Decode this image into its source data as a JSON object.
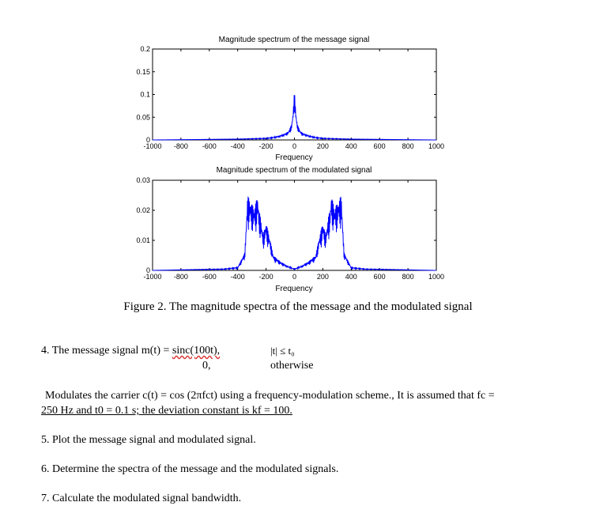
{
  "charts": {
    "message": {
      "title": "Magnitude spectrum of the message signal",
      "xlabel": "Frequency",
      "xticks": [
        "-1000",
        "-800",
        "-600",
        "-400",
        "-200",
        "0",
        "200",
        "400",
        "600",
        "800",
        "1000"
      ],
      "yticks": [
        "0",
        "0.05",
        "0.1",
        "0.15",
        "0.2"
      ]
    },
    "modulated": {
      "title": "Magnitude spectrum of the modulated signal",
      "xlabel": "Frequency",
      "xticks": [
        "-1000",
        "-800",
        "-600",
        "-400",
        "-200",
        "0",
        "200",
        "400",
        "600",
        "800",
        "1000"
      ],
      "yticks": [
        "0",
        "0.01",
        "0.02",
        "0.03"
      ]
    }
  },
  "chart_data": [
    {
      "type": "line",
      "title": "Magnitude spectrum of the message signal",
      "xlabel": "Frequency",
      "ylabel": "",
      "xlim": [
        -1000,
        1000
      ],
      "ylim": [
        0,
        0.2
      ],
      "grid": false,
      "series": [
        {
          "x": [
            -1000,
            -400,
            -200,
            -150,
            -100,
            -60,
            -40,
            -20,
            -10,
            0,
            10,
            20,
            40,
            60,
            100,
            150,
            200,
            400,
            1000
          ],
          "y": [
            0,
            0.002,
            0.004,
            0.006,
            0.01,
            0.015,
            0.02,
            0.035,
            0.06,
            0.11,
            0.06,
            0.035,
            0.02,
            0.015,
            0.01,
            0.006,
            0.004,
            0.002,
            0
          ]
        }
      ]
    },
    {
      "type": "line",
      "title": "Magnitude spectrum of the modulated signal",
      "xlabel": "Frequency",
      "ylabel": "",
      "xlim": [
        -1000,
        1000
      ],
      "ylim": [
        0,
        0.03
      ],
      "grid": false,
      "series": [
        {
          "x": [
            -1000,
            -500,
            -400,
            -350,
            -330,
            -300,
            -280,
            -260,
            -250,
            -240,
            -220,
            -200,
            -170,
            -150,
            -100,
            -50,
            0,
            50,
            100,
            150,
            170,
            200,
            220,
            240,
            250,
            260,
            280,
            300,
            330,
            350,
            400,
            500,
            1000
          ],
          "y": [
            0,
            0.0005,
            0.001,
            0.006,
            0.025,
            0.022,
            0.021,
            0.025,
            0.02,
            0.018,
            0.012,
            0.016,
            0.01,
            0.005,
            0.003,
            0.0015,
            0.0005,
            0.0015,
            0.003,
            0.005,
            0.01,
            0.016,
            0.012,
            0.018,
            0.02,
            0.025,
            0.021,
            0.022,
            0.025,
            0.006,
            0.001,
            0.0005,
            0
          ]
        }
      ]
    }
  ],
  "caption": "Figure 2. The magnitude spectra of the message and the modulated signal",
  "items": {
    "q4_prefix": "4.  The message signal m(t) = ",
    "q4_sinc": "sinc(100t),",
    "q4_cond1": "|t| ≤ t₀",
    "q4_zero": "0,",
    "q4_cond2": "otherwise",
    "q4_line1": "Modulates the carrier c(t) = cos (2πfct) using a frequency-modulation scheme., It is assumed that fc =",
    "q4_line2": "250 Hz and t0 = 0.1 s; the deviation constant is kf = 100.",
    "q5": "5.  Plot the message signal and modulated signal.",
    "q6": "6.  Determine the spectra of the message and the modulated signals.",
    "q7": "7.  Calculate the modulated signal bandwidth."
  },
  "colors": {
    "trace": "#0000ff",
    "axis": "#000000"
  }
}
